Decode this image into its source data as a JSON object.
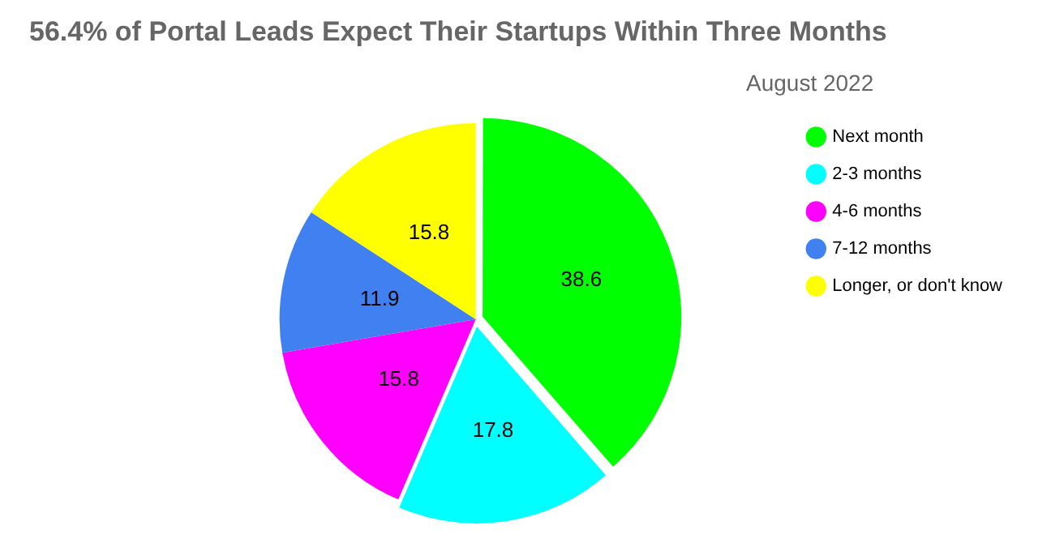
{
  "chart_data": {
    "type": "pie",
    "title": "56.4% of Portal Leads Expect Their Startups Within Three Months",
    "subtitle": "August 2022",
    "categories": [
      "Next month",
      "2-3 months",
      "4-6 months",
      "7-12 months",
      "Longer, or don't know"
    ],
    "values": [
      38.6,
      17.8,
      15.8,
      11.9,
      15.8
    ],
    "colors": [
      "#00ff00",
      "#00ffff",
      "#ff00ff",
      "#4080f0",
      "#ffff00"
    ],
    "data_labels": true,
    "legend": "top right"
  }
}
